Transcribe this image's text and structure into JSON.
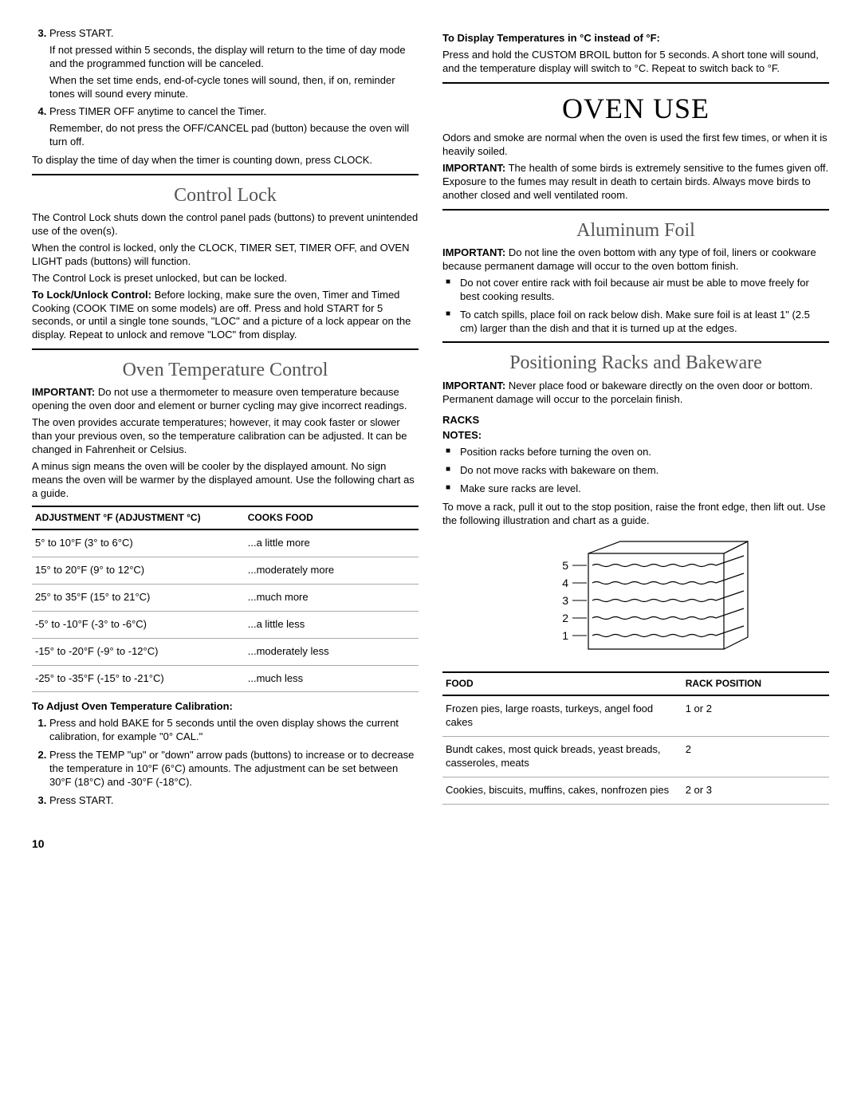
{
  "left": {
    "step3_label": "Press START.",
    "step3_p1": "If not pressed within 5 seconds, the display will return to the time of day mode and the programmed function will be canceled.",
    "step3_p2": "When the set time ends, end-of-cycle tones will sound, then, if on, reminder tones will sound every minute.",
    "step4_label": "Press TIMER OFF anytime to cancel the Timer.",
    "step4_p1": "Remember, do not press the OFF/CANCEL pad (button) because the oven will turn off.",
    "display_time": "To display the time of day when the timer is counting down, press CLOCK.",
    "control_lock_h": "Control Lock",
    "cl_p1": "The Control Lock shuts down the control panel pads (buttons) to prevent unintended use of the oven(s).",
    "cl_p2": "When the control is locked, only the CLOCK, TIMER SET, TIMER OFF, and OVEN LIGHT pads (buttons) will function.",
    "cl_p3": "The Control Lock is preset unlocked, but can be locked.",
    "cl_p4_bold": "To Lock/Unlock Control:",
    "cl_p4_rest": " Before locking, make sure the oven, Timer and Timed Cooking (COOK TIME on some models) are off. Press and hold START for 5 seconds, or until a single tone sounds, \"LOC\" and a picture of a lock appear on the display. Repeat to unlock and remove \"LOC\" from display.",
    "otc_h": "Oven Temperature Control",
    "otc_imp_bold": "IMPORTANT:",
    "otc_imp_rest": " Do not use a thermometer to measure oven temperature because opening the oven door and element or burner cycling may give incorrect readings.",
    "otc_p2": "The oven provides accurate temperatures; however, it may cook faster or slower than your previous oven, so the temperature calibration can be adjusted. It can be changed in Fahrenheit or Celsius.",
    "otc_p3": "A minus sign means the oven will be cooler by the displayed amount. No sign means the oven will be warmer by the displayed amount. Use the following chart as a guide.",
    "adj_table": {
      "h1": "ADJUSTMENT °F (ADJUSTMENT °C)",
      "h2": "COOKS FOOD",
      "rows": [
        {
          "a": "5° to 10°F (3° to 6°C)",
          "b": "...a little more"
        },
        {
          "a": "15° to 20°F (9° to 12°C)",
          "b": "...moderately more"
        },
        {
          "a": "25° to 35°F (15° to 21°C)",
          "b": "...much more"
        },
        {
          "a": "-5° to -10°F (-3° to -6°C)",
          "b": "...a little less"
        },
        {
          "a": "-15° to -20°F (-9° to -12°C)",
          "b": "...moderately less"
        },
        {
          "a": "-25° to -35°F (-15° to -21°C)",
          "b": "...much less"
        }
      ]
    },
    "adj_h": "To Adjust Oven Temperature Calibration:",
    "adj_1": "Press and hold BAKE for 5 seconds until the oven display shows the current calibration, for example \"0° CAL.\"",
    "adj_2": "Press the TEMP \"up\" or \"down\" arrow pads (buttons) to increase or to decrease the temperature in 10°F (6°C) amounts. The adjustment can be set between 30°F (18°C) and -30°F (-18°C).",
    "adj_3": "Press START."
  },
  "right": {
    "celsius_h": "To Display Temperatures in °C instead of °F:",
    "celsius_p": "Press and hold the CUSTOM BROIL button for 5 seconds. A short tone will sound, and the temperature display will switch to °C. Repeat to switch back to °F.",
    "ovenuse_h": "OVEN USE",
    "ovenuse_p1": "Odors and smoke are normal when the oven is used the first few times, or when it is heavily soiled.",
    "ovenuse_imp_bold": "IMPORTANT:",
    "ovenuse_imp_rest": " The health of some birds is extremely sensitive to the fumes given off. Exposure to the fumes may result in death to certain birds. Always move birds to another closed and well ventilated room.",
    "foil_h": "Aluminum Foil",
    "foil_imp_bold": "IMPORTANT:",
    "foil_imp_rest": " Do not line the oven bottom with any type of foil, liners or cookware because permanent damage will occur to the oven bottom finish.",
    "foil_b1": "Do not cover entire rack with foil because air must be able to move freely for best cooking results.",
    "foil_b2": "To catch spills, place foil on rack below dish. Make sure foil is at least 1\" (2.5 cm) larger than the dish and that it is turned up at the edges.",
    "racks_h": "Positioning Racks and Bakeware",
    "racks_imp_bold": "IMPORTANT:",
    "racks_imp_rest": " Never place food or bakeware directly on the oven door or bottom. Permanent damage will occur to the porcelain finish.",
    "racks_sub": "RACKS",
    "racks_notes": "NOTES:",
    "rb1": "Position racks before turning the oven on.",
    "rb2": "Do not move racks with bakeware on them.",
    "rb3": "Make sure racks are level.",
    "racks_move": "To move a rack, pull it out to the stop position, raise the front edge, then lift out. Use the following illustration and chart as a guide.",
    "rack_labels": [
      "5",
      "4",
      "3",
      "2",
      "1"
    ],
    "food_table": {
      "h1": "FOOD",
      "h2": "RACK POSITION",
      "rows": [
        {
          "a": "Frozen pies, large roasts, turkeys, angel food cakes",
          "b": "1 or 2"
        },
        {
          "a": "Bundt cakes, most quick breads, yeast breads, casseroles, meats",
          "b": "2"
        },
        {
          "a": "Cookies, biscuits, muffins, cakes, nonfrozen pies",
          "b": "2 or 3"
        }
      ]
    }
  },
  "page_num": "10"
}
